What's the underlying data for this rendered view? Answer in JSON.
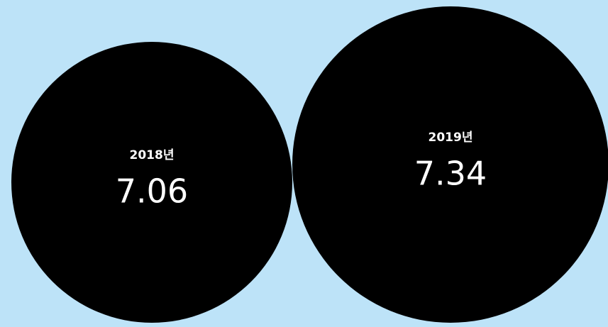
{
  "chart_data": {
    "type": "bubble",
    "categories": [
      "2018년",
      "2019년"
    ],
    "values": [
      7.06,
      7.34
    ],
    "color": "#000000",
    "label_color": "#ffffff"
  }
}
